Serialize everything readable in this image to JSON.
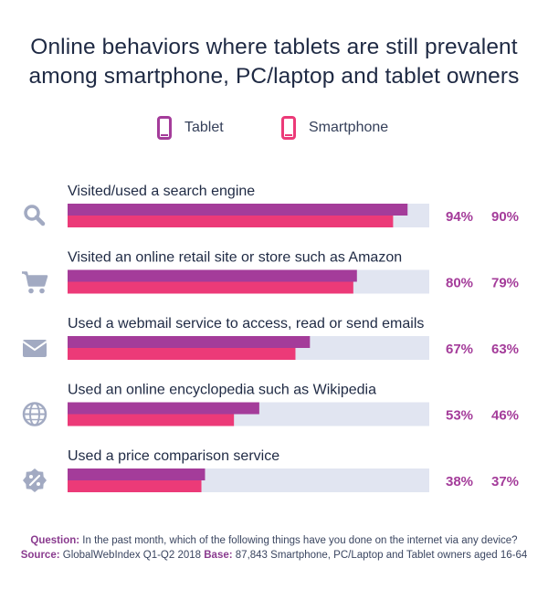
{
  "title_line1": "Online behaviors where tablets are still prevalent",
  "title_line2": "among smartphone, PC/laptop and tablet owners",
  "legend": {
    "tablet_label": "Tablet",
    "smartphone_label": "Smartphone"
  },
  "colors": {
    "tablet": "#a43c9a",
    "smartphone": "#ec3a78",
    "track": "#e1e5f1",
    "icon": "#a2aac2",
    "value_text": "#a43c9a"
  },
  "chart_data": {
    "type": "bar",
    "orientation": "horizontal",
    "categories": [
      "Visited/used a search engine",
      "Visited an online retail site or store such as Amazon",
      "Used a webmail service to access, read or send emails",
      "Used an online encyclopedia such as Wikipedia",
      "Used a price comparison service"
    ],
    "category_icons": [
      "search-icon",
      "cart-icon",
      "mail-icon",
      "globe-icon",
      "discount-badge-icon"
    ],
    "series": [
      {
        "name": "Tablet",
        "values": [
          94,
          80,
          67,
          53,
          38
        ]
      },
      {
        "name": "Smartphone",
        "values": [
          90,
          79,
          63,
          46,
          37
        ]
      }
    ],
    "value_labels": {
      "Tablet": [
        "94%",
        "80%",
        "67%",
        "53%",
        "38%"
      ],
      "Smartphone": [
        "90%",
        "79%",
        "63%",
        "46%",
        "37%"
      ]
    },
    "xlim": [
      0,
      100
    ],
    "legend_position": "top-center"
  },
  "footer": {
    "question_label": "Question:",
    "question_text": " In the past month, which of the following things have you done on the internet via any device?",
    "source_label": "Source:",
    "source_text": " GlobalWebIndex Q1-Q2 2018 ",
    "base_label": "Base:",
    "base_text": " 87,843 Smartphone, PC/Laptop and Tablet owners aged 16-64"
  }
}
